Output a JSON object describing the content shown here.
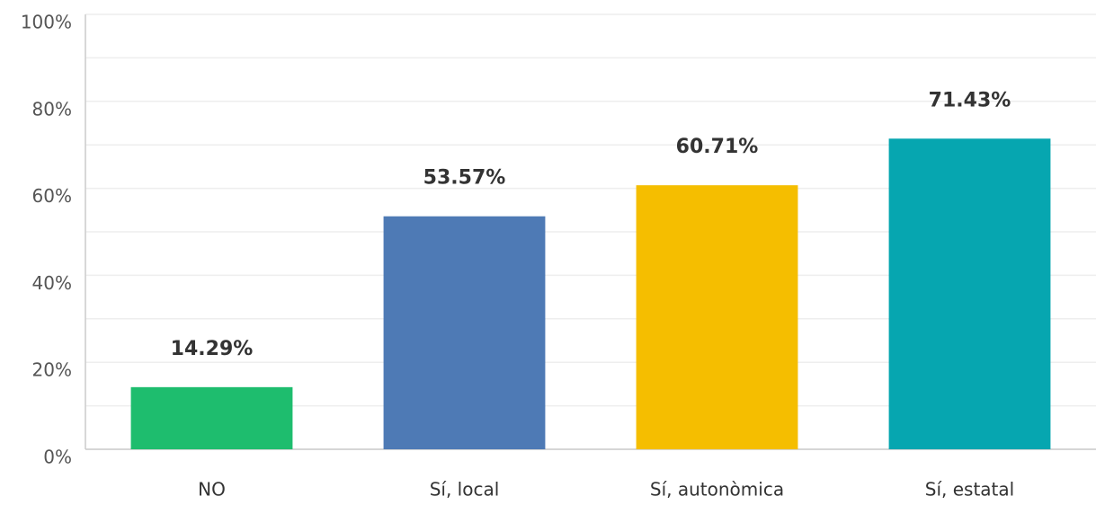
{
  "chart_data": {
    "type": "bar",
    "categories": [
      "NO",
      "Sí, local",
      "Sí, autonòmica",
      "Sí, estatal"
    ],
    "values": [
      14.29,
      53.57,
      60.71,
      71.43
    ],
    "value_labels": [
      "14.29%",
      "53.57%",
      "60.71%",
      "71.43%"
    ],
    "colors": [
      "#1ebd6e",
      "#4e7ab5",
      "#f5be00",
      "#06a6b0"
    ],
    "ylim": [
      0,
      100
    ],
    "yticks": [
      {
        "value": 0,
        "label": "0%"
      },
      {
        "value": 20,
        "label": "20%"
      },
      {
        "value": 40,
        "label": "40%"
      },
      {
        "value": 60,
        "label": "60%"
      },
      {
        "value": 80,
        "label": "80%"
      },
      {
        "value": 100,
        "label": "100%"
      }
    ],
    "minor_yticks": [
      10,
      30,
      50,
      70,
      90
    ],
    "grid": true
  }
}
